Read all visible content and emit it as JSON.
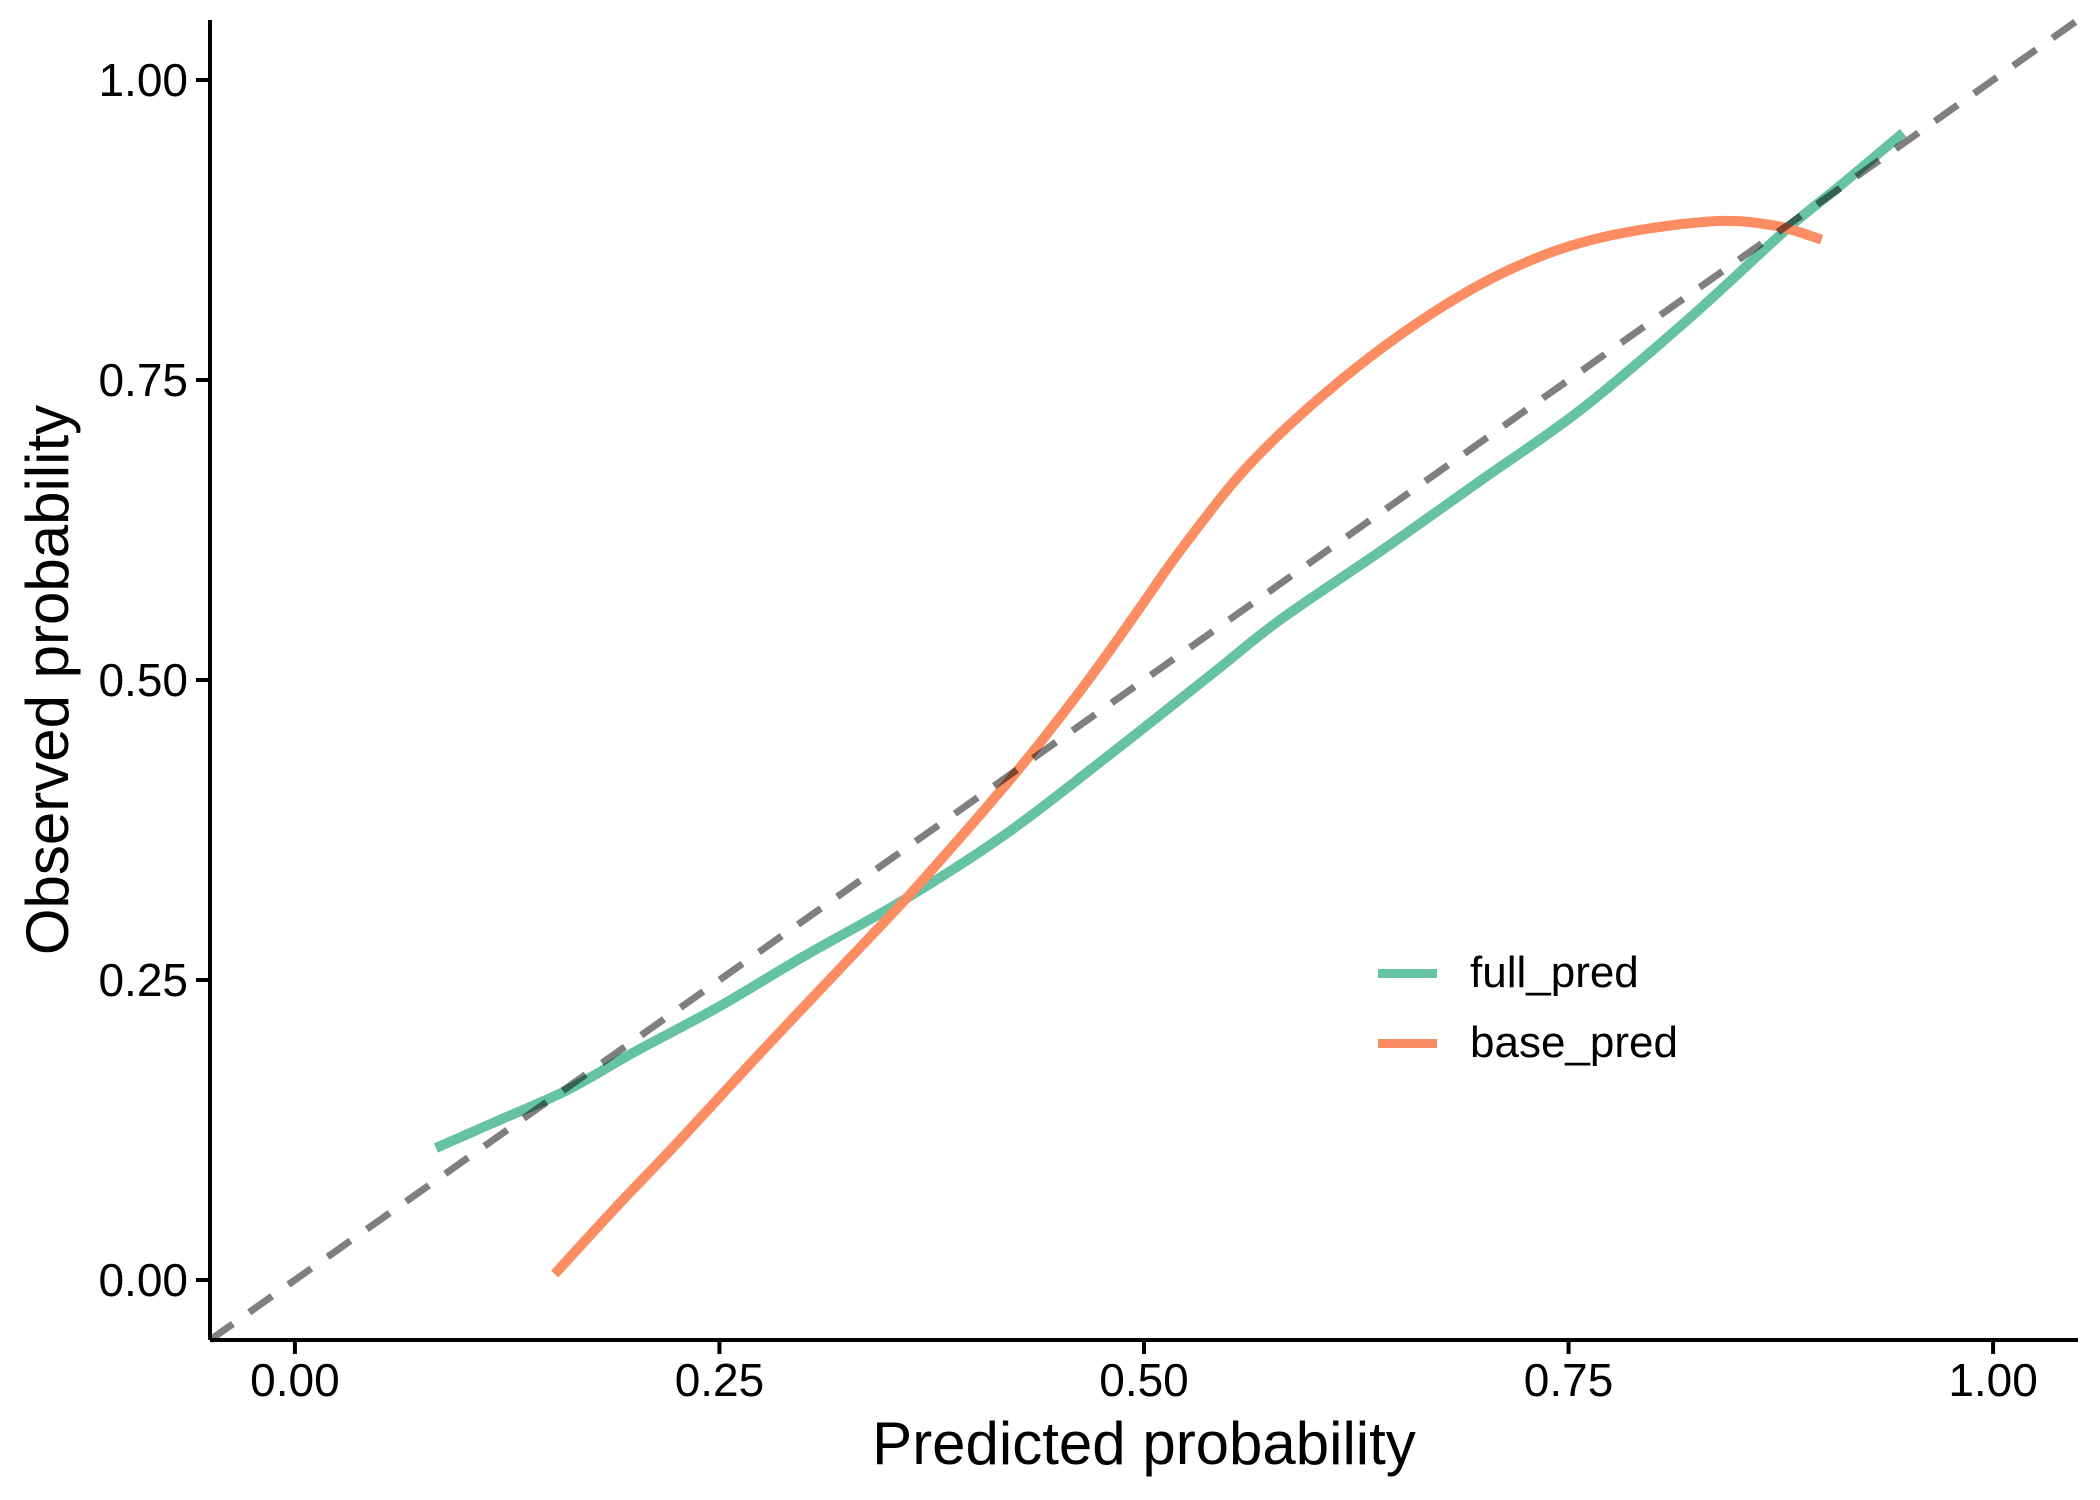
{
  "figure": {
    "background": "#FFFFFF"
  },
  "chart_data": {
    "type": "line",
    "title": "",
    "xlabel": "Predicted probability",
    "ylabel": "Observed probability",
    "xlim": [
      -0.05,
      1.05
    ],
    "ylim": [
      -0.05,
      1.05
    ],
    "grid": false,
    "axis_color": "#000000",
    "x_ticks": {
      "values": [
        0,
        0.25,
        0.5,
        0.75,
        1
      ],
      "labels": [
        "0.00",
        "0.25",
        "0.50",
        "0.75",
        "1.00"
      ]
    },
    "y_ticks": {
      "values": [
        0,
        0.25,
        0.5,
        0.75,
        1
      ],
      "labels": [
        "0.00",
        "0.25",
        "0.50",
        "0.75",
        "1.00"
      ]
    },
    "legend_position": "inside-right",
    "reference_line": {
      "style": "dashed",
      "color": "#000000",
      "opacity": 0.5,
      "from": [
        -0.05,
        -0.05
      ],
      "to": [
        1.05,
        1.05
      ]
    },
    "series": [
      {
        "name": "full_pred",
        "color": "#66C2A5",
        "points": [
          [
            0.083,
            0.11
          ],
          [
            0.12,
            0.133
          ],
          [
            0.16,
            0.158
          ],
          [
            0.2,
            0.19
          ],
          [
            0.25,
            0.228
          ],
          [
            0.3,
            0.27
          ],
          [
            0.36,
            0.318
          ],
          [
            0.42,
            0.373
          ],
          [
            0.48,
            0.438
          ],
          [
            0.54,
            0.505
          ],
          [
            0.58,
            0.55
          ],
          [
            0.64,
            0.608
          ],
          [
            0.7,
            0.668
          ],
          [
            0.757,
            0.725
          ],
          [
            0.82,
            0.8
          ],
          [
            0.878,
            0.875
          ],
          [
            0.91,
            0.912
          ],
          [
            0.947,
            0.956
          ]
        ]
      },
      {
        "name": "base_pred",
        "color": "#FC8D62",
        "points": [
          [
            0.153,
            0.005
          ],
          [
            0.19,
            0.062
          ],
          [
            0.227,
            0.117
          ],
          [
            0.27,
            0.183
          ],
          [
            0.32,
            0.258
          ],
          [
            0.36,
            0.318
          ],
          [
            0.4,
            0.382
          ],
          [
            0.427,
            0.427
          ],
          [
            0.45,
            0.468
          ],
          [
            0.474,
            0.513
          ],
          [
            0.5,
            0.565
          ],
          [
            0.523,
            0.611
          ],
          [
            0.563,
            0.681
          ],
          [
            0.616,
            0.75
          ],
          [
            0.67,
            0.806
          ],
          [
            0.72,
            0.845
          ],
          [
            0.77,
            0.869
          ],
          [
            0.832,
            0.882
          ],
          [
            0.87,
            0.879
          ],
          [
            0.899,
            0.867
          ]
        ]
      }
    ]
  }
}
